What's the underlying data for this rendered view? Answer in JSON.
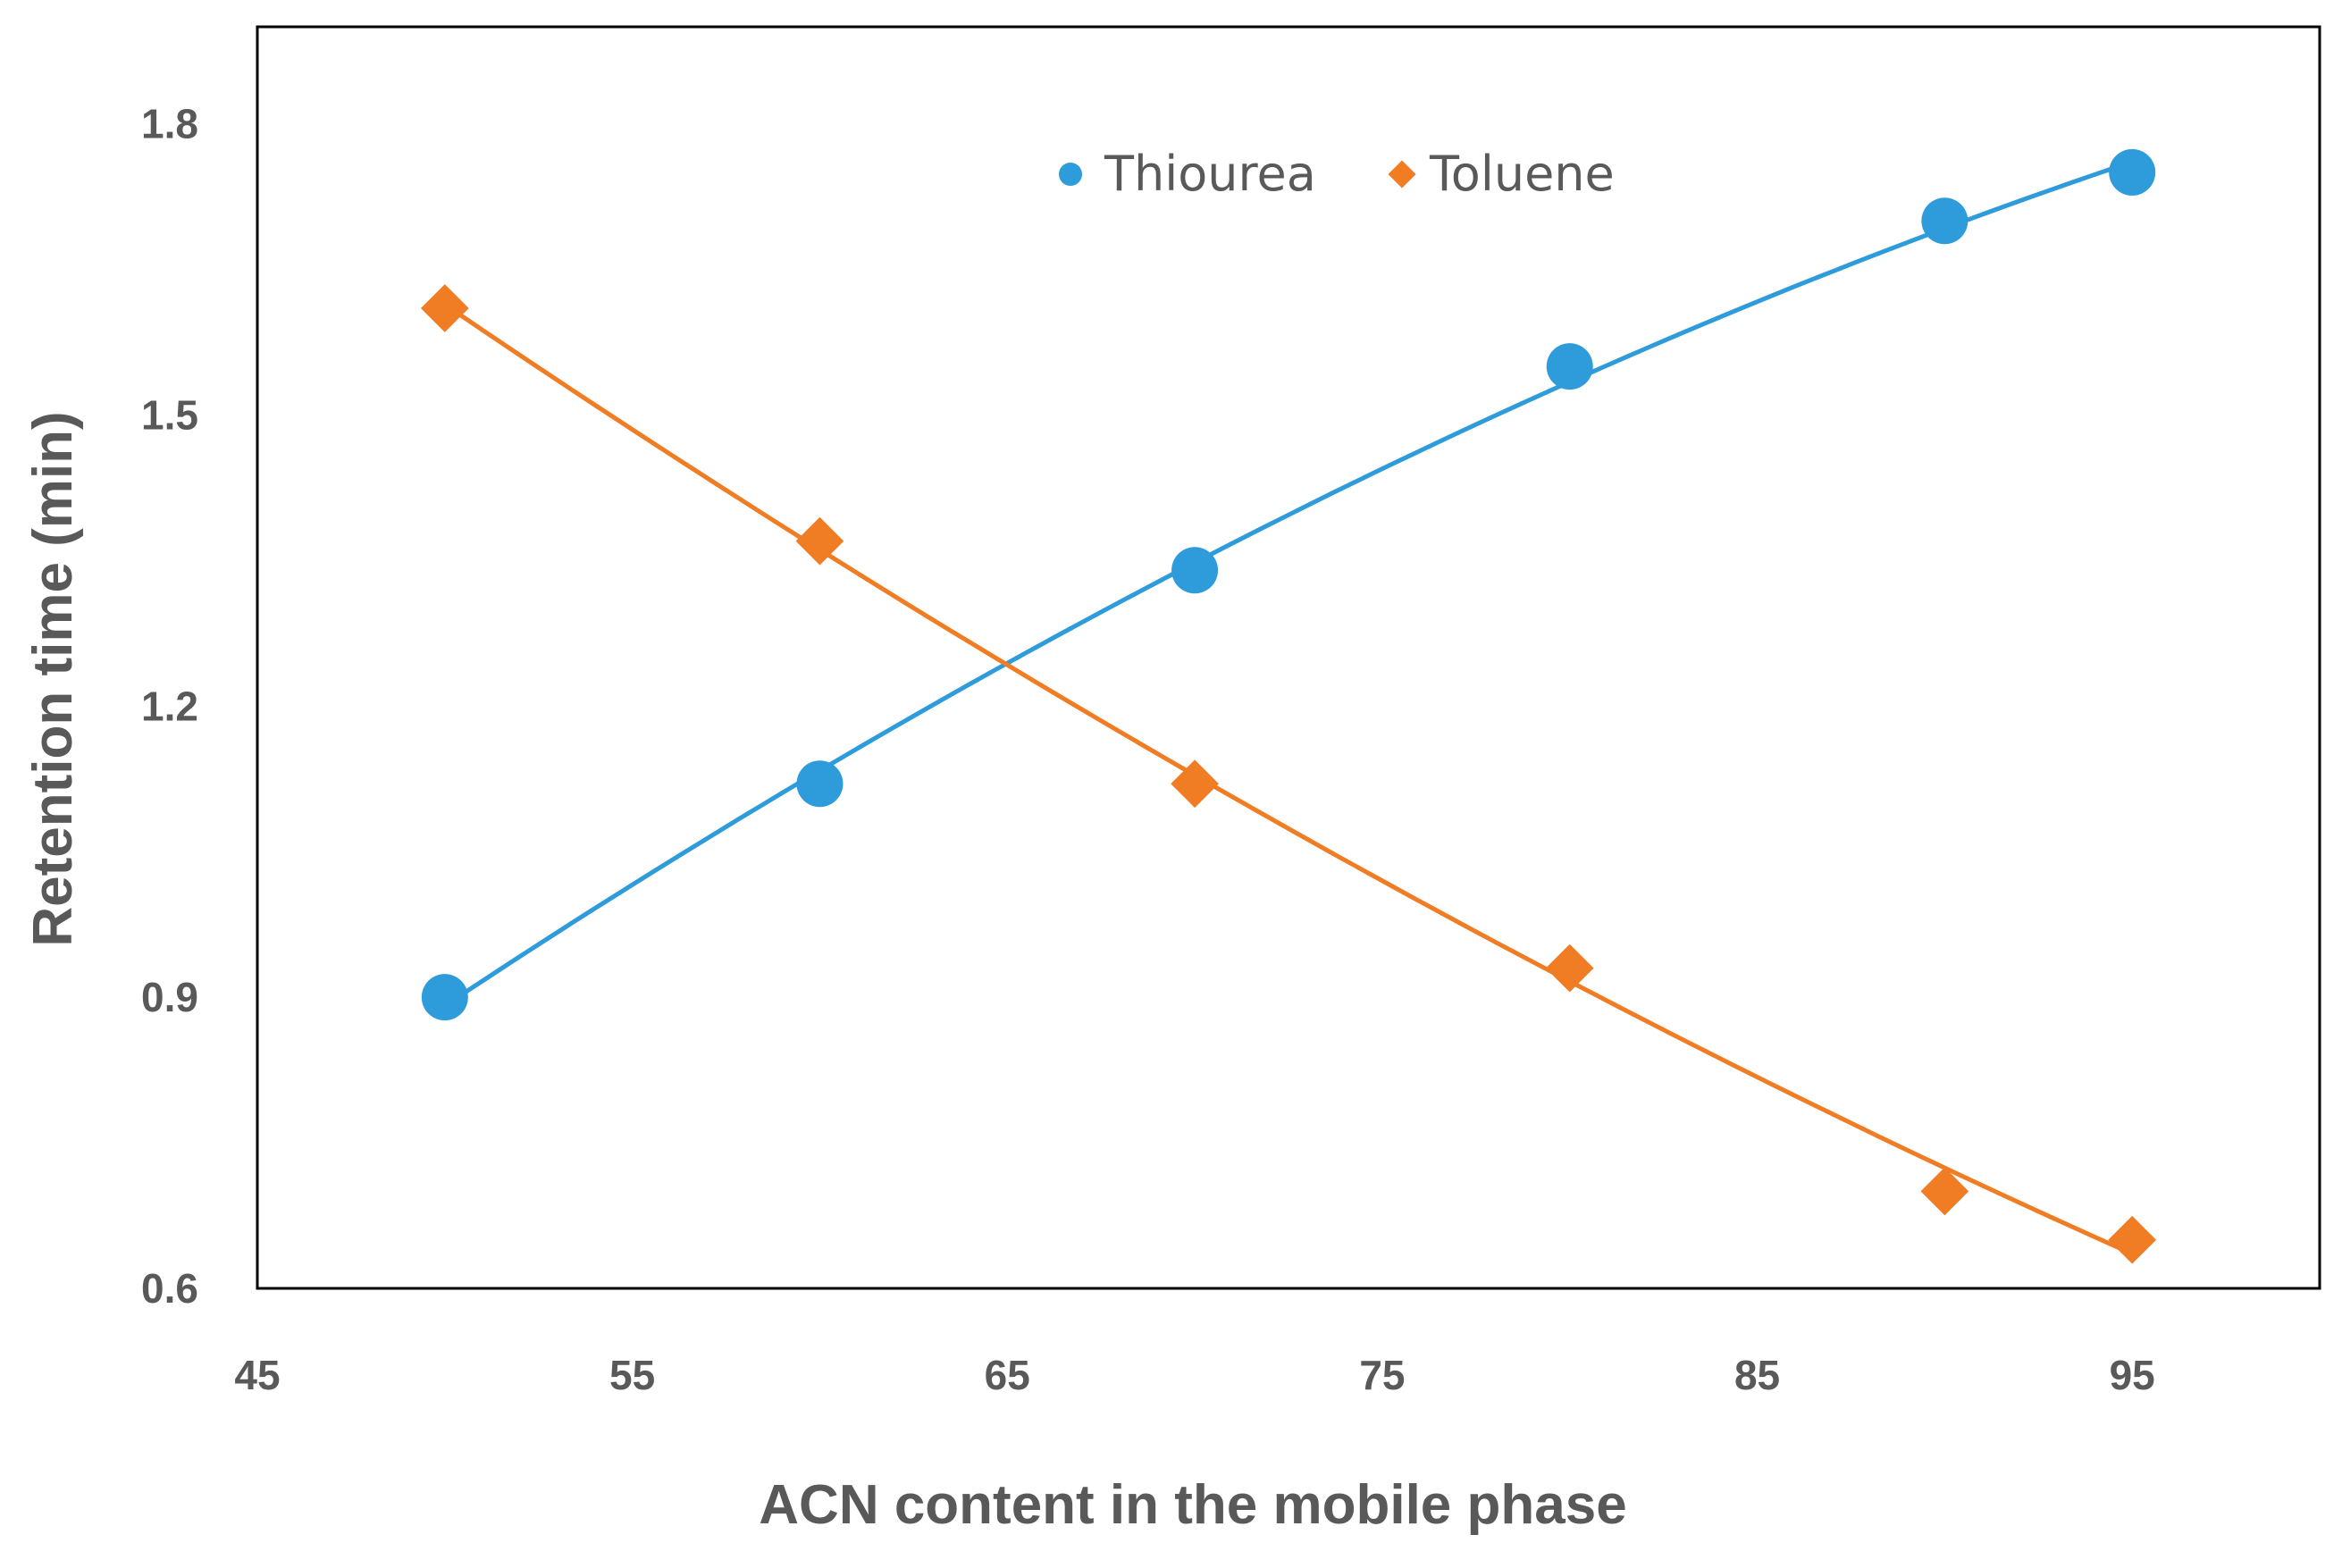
{
  "chart_data": {
    "type": "scatter",
    "title": "",
    "xlabel": "ACN content in the mobile phase",
    "ylabel": "Retention time (min)",
    "xlim": [
      45,
      100
    ],
    "ylim": [
      0.6,
      1.9
    ],
    "x_ticks": [
      45,
      55,
      65,
      75,
      85,
      95
    ],
    "y_ticks": [
      0.6,
      0.9,
      1.2,
      1.5,
      1.8
    ],
    "x_tick_labels": [
      "45",
      "55",
      "65",
      "75",
      "85",
      "95"
    ],
    "y_tick_labels": [
      "0.6",
      "0.9",
      "1.2",
      "1.5",
      "1.8"
    ],
    "grid": false,
    "legend_position": "top-center",
    "series": [
      {
        "name": "Thiourea",
        "marker": "circle",
        "color": "#2E9BDA",
        "x": [
          50,
          60,
          70,
          80,
          90,
          95
        ],
        "y": [
          0.9,
          1.12,
          1.34,
          1.55,
          1.7,
          1.75
        ],
        "trendline": "polynomial"
      },
      {
        "name": "Toluene",
        "marker": "diamond",
        "color": "#F07C24",
        "x": [
          50,
          60,
          70,
          80,
          90,
          95
        ],
        "y": [
          1.61,
          1.37,
          1.12,
          0.93,
          0.7,
          0.65
        ],
        "trendline": "polynomial"
      }
    ]
  }
}
